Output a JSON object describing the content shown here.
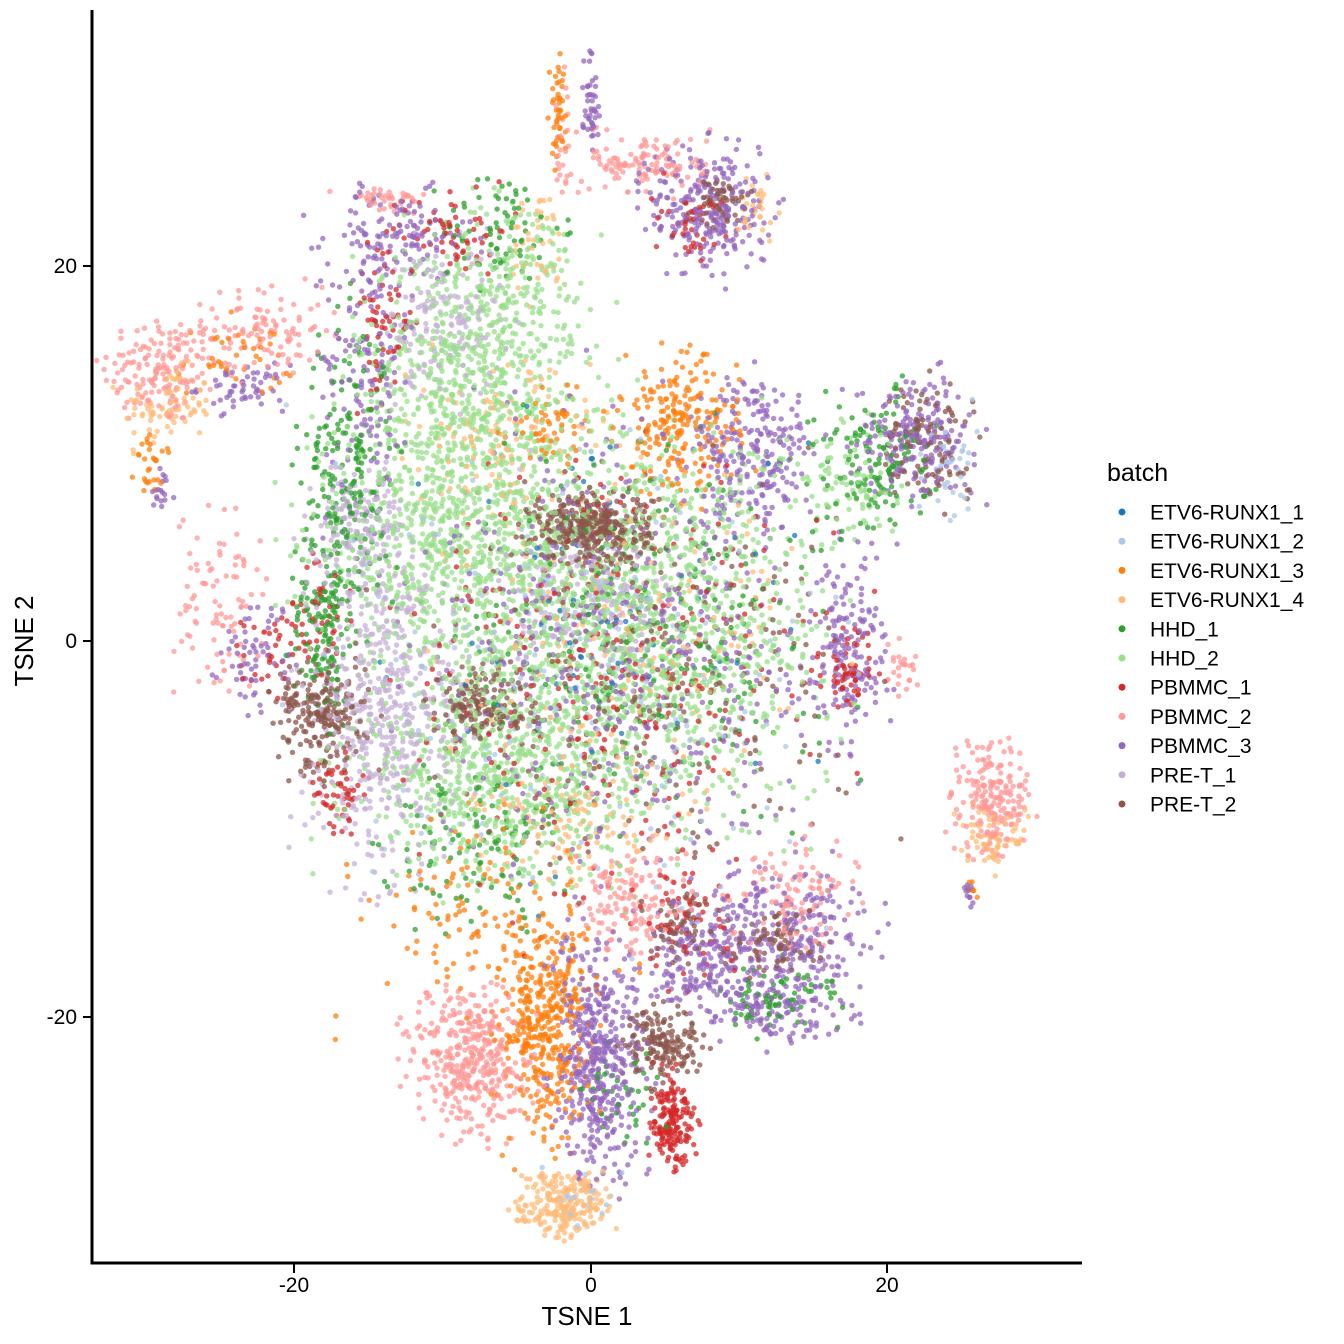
{
  "chart_data": {
    "type": "scatter",
    "title": "",
    "xlabel": "TSNE 1",
    "ylabel": "TSNE 2",
    "xlim": [
      -33.5,
      33.5
    ],
    "ylim": [
      -33.0,
      33.5
    ],
    "x_ticks": [
      -20,
      0,
      20
    ],
    "y_ticks": [
      -20,
      0,
      20
    ],
    "x_tick_labels": [
      "-20",
      "0",
      "20"
    ],
    "y_tick_labels": [
      "-20",
      "0",
      "20"
    ],
    "grid": false,
    "legend_position": "right",
    "legend": {
      "title": "batch",
      "entries": [
        {
          "name": "ETV6-RUNX1_1",
          "color": "#1f77b4"
        },
        {
          "name": "ETV6-RUNX1_2",
          "color": "#aec7e8"
        },
        {
          "name": "ETV6-RUNX1_3",
          "color": "#ff7f0e"
        },
        {
          "name": "ETV6-RUNX1_4",
          "color": "#ffbb78"
        },
        {
          "name": "HHD_1",
          "color": "#2ca02c"
        },
        {
          "name": "HHD_2",
          "color": "#98df8a"
        },
        {
          "name": "PBMMC_1",
          "color": "#d62728"
        },
        {
          "name": "PBMMC_2",
          "color": "#ff9896"
        },
        {
          "name": "PBMMC_3",
          "color": "#9467bd"
        },
        {
          "name": "PRE-T_1",
          "color": "#c5b0d5"
        },
        {
          "name": "PRE-T_2",
          "color": "#8c564b"
        }
      ]
    },
    "clusters": [
      {
        "series": "PBMMC_2",
        "x": -29,
        "y": 14.5,
        "sx": 2.0,
        "sy": 1.5,
        "n": 160
      },
      {
        "series": "ETV6-RUNX1_4",
        "x": -28.5,
        "y": 12.5,
        "sx": 1.5,
        "sy": 1.0,
        "n": 80
      },
      {
        "series": "PBMMC_2",
        "x": -22,
        "y": 16.5,
        "sx": 2.0,
        "sy": 1.2,
        "n": 110
      },
      {
        "series": "ETV6-RUNX1_3",
        "x": -24,
        "y": 15,
        "sx": 2.0,
        "sy": 1.0,
        "n": 40
      },
      {
        "series": "PBMMC_3",
        "x": -23.5,
        "y": 13.5,
        "sx": 1.5,
        "sy": 0.6,
        "n": 55
      },
      {
        "series": "ETV6-RUNX1_3",
        "x": -29.5,
        "y": 9.3,
        "sx": 0.6,
        "sy": 0.8,
        "n": 28
      },
      {
        "series": "PBMMC_3",
        "x": -29.0,
        "y": 7.8,
        "sx": 0.5,
        "sy": 0.7,
        "n": 18
      },
      {
        "series": "PBMMC_2",
        "x": -25,
        "y": 2.0,
        "sx": 1.5,
        "sy": 2.5,
        "n": 90
      },
      {
        "series": "PBMMC_3",
        "x": -22.5,
        "y": -0.5,
        "sx": 1.2,
        "sy": 1.5,
        "n": 60
      },
      {
        "series": "PBMMC_1",
        "x": -21.5,
        "y": -1.0,
        "sx": 1.0,
        "sy": 1.2,
        "n": 35
      },
      {
        "series": "PBMMC_2",
        "x": -14,
        "y": 23.5,
        "sx": 1.5,
        "sy": 0.4,
        "n": 40
      },
      {
        "series": "PBMMC_3",
        "x": -13,
        "y": 21.5,
        "sx": 2.5,
        "sy": 1.2,
        "n": 120
      },
      {
        "series": "PBMMC_1",
        "x": -9.5,
        "y": 22,
        "sx": 2.0,
        "sy": 1.2,
        "n": 60
      },
      {
        "series": "HHD_1",
        "x": -6,
        "y": 22,
        "sx": 2.0,
        "sy": 1.5,
        "n": 70
      },
      {
        "series": "HHD_2",
        "x": -5,
        "y": 20,
        "sx": 2.5,
        "sy": 2.0,
        "n": 120
      },
      {
        "series": "ETV6-RUNX1_4",
        "x": -3.5,
        "y": 21,
        "sx": 1.0,
        "sy": 1.5,
        "n": 40
      },
      {
        "series": "PBMMC_3",
        "x": -15,
        "y": 15,
        "sx": 1.5,
        "sy": 4.0,
        "n": 160
      },
      {
        "series": "PBMMC_1",
        "x": -14,
        "y": 17,
        "sx": 1.0,
        "sy": 2.0,
        "n": 60
      },
      {
        "series": "HHD_1",
        "x": -16.5,
        "y": 9,
        "sx": 1.5,
        "sy": 4.0,
        "n": 200
      },
      {
        "series": "PRE-T_1",
        "x": -10,
        "y": 17,
        "sx": 2.0,
        "sy": 2.0,
        "n": 150
      },
      {
        "series": "HHD_2",
        "x": -8,
        "y": 14,
        "sx": 4.0,
        "sy": 3.5,
        "n": 700
      },
      {
        "series": "ETV6-RUNX1_4",
        "x": -6,
        "y": 11,
        "sx": 3.0,
        "sy": 2.0,
        "n": 120
      },
      {
        "series": "ETV6-RUNX1_3",
        "x": -2.5,
        "y": 11.5,
        "sx": 1.5,
        "sy": 1.0,
        "n": 50
      },
      {
        "series": "HHD_2",
        "x": -10,
        "y": 5,
        "sx": 4.5,
        "sy": 3.0,
        "n": 650
      },
      {
        "series": "PRE-T_1",
        "x": -15.5,
        "y": 6,
        "sx": 1.5,
        "sy": 1.8,
        "n": 170
      },
      {
        "series": "PRE-T_2",
        "x": 0,
        "y": 6,
        "sx": 2.0,
        "sy": 0.9,
        "n": 380
      },
      {
        "series": "ETV6-RUNX1_3",
        "x": 6,
        "y": 11.5,
        "sx": 2.0,
        "sy": 1.8,
        "n": 220
      },
      {
        "series": "PBMMC_3",
        "x": 11,
        "y": 10,
        "sx": 2.0,
        "sy": 2.0,
        "n": 220
      },
      {
        "series": "PBMMC_3",
        "x": 22,
        "y": 11,
        "sx": 2.0,
        "sy": 1.5,
        "n": 200
      },
      {
        "series": "PRE-T_2",
        "x": 22.5,
        "y": 10.5,
        "sx": 1.5,
        "sy": 1.5,
        "n": 120
      },
      {
        "series": "HHD_1",
        "x": 19,
        "y": 9.5,
        "sx": 2.0,
        "sy": 2.0,
        "n": 130
      },
      {
        "series": "HHD_2",
        "x": 17.5,
        "y": 8.5,
        "sx": 1.5,
        "sy": 1.5,
        "n": 80
      },
      {
        "series": "ETV6-RUNX1_2",
        "x": 24,
        "y": 9,
        "sx": 1.0,
        "sy": 1.5,
        "n": 40
      },
      {
        "series": "PBMMC_2",
        "x": 4,
        "y": 25.5,
        "sx": 2.0,
        "sy": 0.8,
        "n": 120
      },
      {
        "series": "PBMMC_3",
        "x": 8,
        "y": 23,
        "sx": 2.0,
        "sy": 1.8,
        "n": 260
      },
      {
        "series": "PRE-T_2",
        "x": 8.5,
        "y": 23.5,
        "sx": 1.0,
        "sy": 0.6,
        "n": 60
      },
      {
        "series": "PBMMC_1",
        "x": 6.5,
        "y": 22.5,
        "sx": 1.2,
        "sy": 1.0,
        "n": 40
      },
      {
        "series": "ETV6-RUNX1_4",
        "x": 11,
        "y": 23,
        "sx": 0.7,
        "sy": 0.8,
        "n": 30
      },
      {
        "series": "PBMMC_3",
        "x": 0,
        "y": 29,
        "sx": 0.3,
        "sy": 1.3,
        "n": 45
      },
      {
        "series": "ETV6-RUNX1_3",
        "x": -2.2,
        "y": 28,
        "sx": 0.3,
        "sy": 1.6,
        "n": 45
      },
      {
        "series": "PBMMC_2",
        "x": -2.0,
        "y": 27,
        "sx": 0.3,
        "sy": 1.6,
        "n": 25
      },
      {
        "series": "HHD_2",
        "x": 3,
        "y": 1,
        "sx": 6.0,
        "sy": 5.0,
        "n": 1400
      },
      {
        "series": "HHD_1",
        "x": 4,
        "y": 1,
        "sx": 6.0,
        "sy": 5.0,
        "n": 220
      },
      {
        "series": "PBMMC_3",
        "x": 3,
        "y": 0,
        "sx": 7.0,
        "sy": 6.0,
        "n": 550
      },
      {
        "series": "PBMMC_1",
        "x": 2,
        "y": -2,
        "sx": 7.0,
        "sy": 6.0,
        "n": 280
      },
      {
        "series": "PRE-T_2",
        "x": 3,
        "y": -2,
        "sx": 7.0,
        "sy": 5.0,
        "n": 280
      },
      {
        "series": "ETV6-RUNX1_1",
        "x": 1,
        "y": 0,
        "sx": 7.0,
        "sy": 6.0,
        "n": 70
      },
      {
        "series": "ETV6-RUNX1_2",
        "x": 0,
        "y": -2,
        "sx": 8.0,
        "sy": 6.0,
        "n": 240
      },
      {
        "series": "PRE-T_1",
        "x": 0,
        "y": 2,
        "sx": 2.5,
        "sy": 1.5,
        "n": 150
      },
      {
        "series": "ETV6-RUNX1_4",
        "x": 2,
        "y": 1,
        "sx": 6.0,
        "sy": 5.0,
        "n": 200
      },
      {
        "series": "PBMMC_3",
        "x": 17.5,
        "y": -0.5,
        "sx": 1.2,
        "sy": 2.5,
        "n": 150
      },
      {
        "series": "PBMMC_1",
        "x": 17.5,
        "y": -1.5,
        "sx": 1.0,
        "sy": 1.0,
        "n": 60
      },
      {
        "series": "PBMMC_2",
        "x": 21,
        "y": -1.5,
        "sx": 0.6,
        "sy": 0.8,
        "n": 25
      },
      {
        "series": "PRE-T_1",
        "x": -14,
        "y": -4,
        "sx": 2.5,
        "sy": 4.0,
        "n": 500
      },
      {
        "series": "PRE-T_2",
        "x": -18,
        "y": -4,
        "sx": 1.5,
        "sy": 1.5,
        "n": 220
      },
      {
        "series": "PRE-T_2",
        "x": -7.5,
        "y": -3.5,
        "sx": 1.5,
        "sy": 1.0,
        "n": 150
      },
      {
        "series": "HHD_1",
        "x": -18,
        "y": 1,
        "sx": 1.0,
        "sy": 2.5,
        "n": 140
      },
      {
        "series": "PBMMC_1",
        "x": -17,
        "y": -8,
        "sx": 0.8,
        "sy": 1.0,
        "n": 50
      },
      {
        "series": "PBMMC_1",
        "x": -18.5,
        "y": 1.5,
        "sx": 1.0,
        "sy": 1.5,
        "n": 40
      },
      {
        "series": "HHD_2",
        "x": -6,
        "y": -7,
        "sx": 5.0,
        "sy": 3.0,
        "n": 700
      },
      {
        "series": "HHD_1",
        "x": -8,
        "y": -11,
        "sx": 3.0,
        "sy": 2.0,
        "n": 110
      },
      {
        "series": "ETV6-RUNX1_4",
        "x": -1,
        "y": -10,
        "sx": 3.0,
        "sy": 1.5,
        "n": 100
      },
      {
        "series": "ETV6-RUNX1_3",
        "x": -7,
        "y": -15,
        "sx": 4.0,
        "sy": 3.0,
        "n": 140
      },
      {
        "series": "PBMMC_2",
        "x": 2.5,
        "y": -14,
        "sx": 1.8,
        "sy": 1.5,
        "n": 140
      },
      {
        "series": "PBMMC_2",
        "x": 13.5,
        "y": -13.5,
        "sx": 2.0,
        "sy": 1.5,
        "n": 110
      },
      {
        "series": "PBMMC_3",
        "x": 13,
        "y": -16,
        "sx": 3.0,
        "sy": 2.0,
        "n": 320
      },
      {
        "series": "PRE-T_2",
        "x": 12.5,
        "y": -16,
        "sx": 1.5,
        "sy": 0.8,
        "n": 80
      },
      {
        "series": "PBMMC_1",
        "x": 6.5,
        "y": -15,
        "sx": 1.5,
        "sy": 1.5,
        "n": 60
      },
      {
        "series": "PBMMC_3",
        "x": 7,
        "y": -17.5,
        "sx": 2.0,
        "sy": 1.5,
        "n": 160
      },
      {
        "series": "HHD_1",
        "x": 12.5,
        "y": -19,
        "sx": 2.0,
        "sy": 1.0,
        "n": 70
      },
      {
        "series": "PBMMC_3",
        "x": 12,
        "y": -20,
        "sx": 2.0,
        "sy": 1.0,
        "n": 90
      },
      {
        "series": "PRE-T_2",
        "x": 6,
        "y": -15.5,
        "sx": 1.0,
        "sy": 0.8,
        "n": 60
      },
      {
        "series": "PBMMC_2",
        "x": -8,
        "y": -22.5,
        "sx": 2.0,
        "sy": 2.0,
        "n": 400
      },
      {
        "series": "ETV6-RUNX1_3",
        "x": -3,
        "y": -20.5,
        "sx": 1.5,
        "sy": 3.0,
        "n": 400
      },
      {
        "series": "PBMMC_3",
        "x": 0.5,
        "y": -22.5,
        "sx": 1.5,
        "sy": 3.0,
        "n": 450
      },
      {
        "series": "PRE-T_2",
        "x": 5,
        "y": -21.5,
        "sx": 1.3,
        "sy": 1.0,
        "n": 170
      },
      {
        "series": "PBMMC_1",
        "x": 5.5,
        "y": -25.5,
        "sx": 0.8,
        "sy": 1.2,
        "n": 170
      },
      {
        "series": "HHD_1",
        "x": 2.5,
        "y": -24.5,
        "sx": 1.5,
        "sy": 1.5,
        "n": 40
      },
      {
        "series": "ETV6-RUNX1_4",
        "x": -2,
        "y": -30,
        "sx": 1.5,
        "sy": 0.8,
        "n": 230
      },
      {
        "series": "ETV6-RUNX1_2",
        "x": -0.5,
        "y": -29.5,
        "sx": 1.5,
        "sy": 0.8,
        "n": 20
      },
      {
        "series": "PBMMC_2",
        "x": 27,
        "y": -8.5,
        "sx": 1.2,
        "sy": 1.5,
        "n": 200
      },
      {
        "series": "ETV6-RUNX1_4",
        "x": 27,
        "y": -10.5,
        "sx": 1.0,
        "sy": 0.8,
        "n": 70
      },
      {
        "series": "PBMMC_3",
        "x": 25.5,
        "y": -13.5,
        "sx": 0.2,
        "sy": 0.4,
        "n": 10
      },
      {
        "series": "ETV6-RUNX1_3",
        "x": 25.6,
        "y": -13.2,
        "sx": 0.2,
        "sy": 0.3,
        "n": 8
      }
    ]
  }
}
